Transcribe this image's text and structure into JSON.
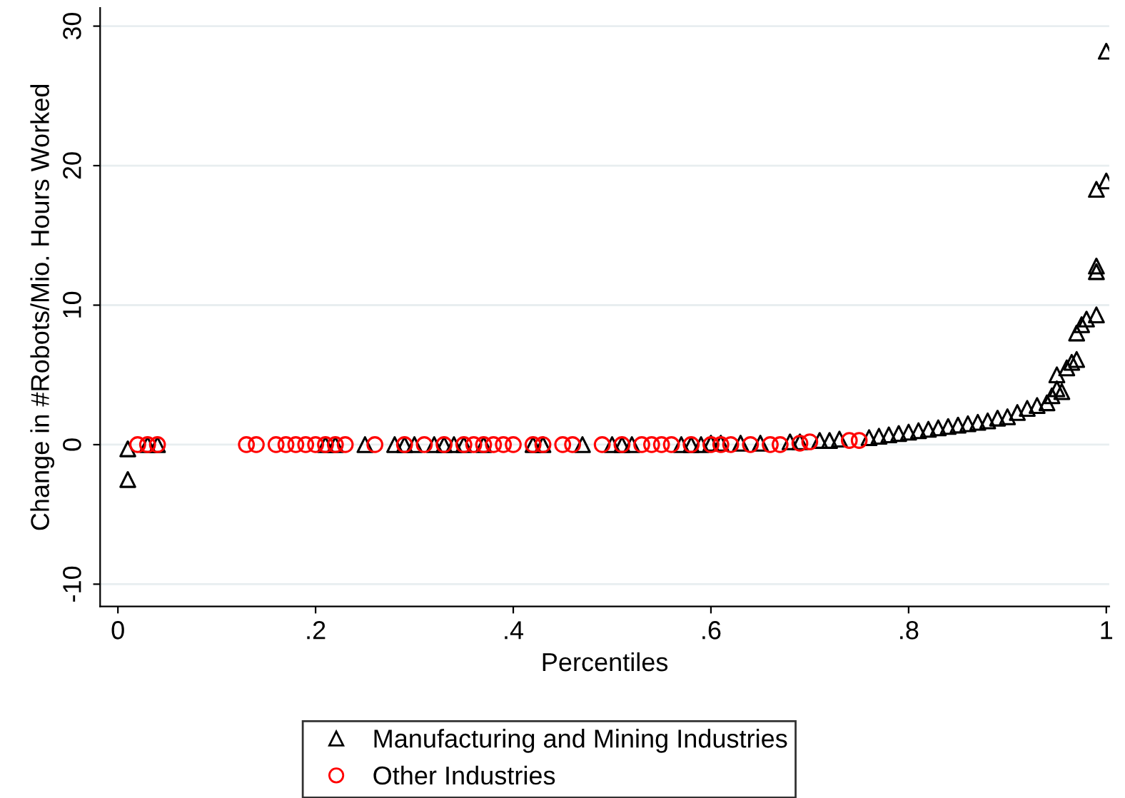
{
  "chart_data": {
    "type": "scatter",
    "xlabel": "Percentiles",
    "ylabel": "Change in #Robots/Mio. Hours Worked",
    "xlim": [
      -0.018,
      1.003
    ],
    "ylim": [
      -11.6,
      31.3
    ],
    "xticks": [
      {
        "value": 0,
        "label": "0"
      },
      {
        "value": 0.2,
        "label": ".2"
      },
      {
        "value": 0.4,
        "label": ".4"
      },
      {
        "value": 0.6,
        "label": ".6"
      },
      {
        "value": 0.8,
        "label": ".8"
      },
      {
        "value": 1,
        "label": "1"
      }
    ],
    "yticks": [
      -10,
      0,
      10,
      20,
      30
    ],
    "grid": "y",
    "legend": "bottom",
    "series": [
      {
        "name": "Manufacturing and Mining Industries",
        "color": "#000000",
        "marker": "triangle",
        "x": [
          0.01,
          0.01,
          0.03,
          0.04,
          0.21,
          0.22,
          0.25,
          0.28,
          0.29,
          0.3,
          0.32,
          0.33,
          0.34,
          0.35,
          0.37,
          0.42,
          0.43,
          0.47,
          0.5,
          0.51,
          0.52,
          0.57,
          0.58,
          0.59,
          0.6,
          0.61,
          0.63,
          0.65,
          0.68,
          0.69,
          0.71,
          0.72,
          0.73,
          0.76,
          0.77,
          0.78,
          0.79,
          0.8,
          0.81,
          0.82,
          0.83,
          0.84,
          0.85,
          0.86,
          0.87,
          0.88,
          0.89,
          0.9,
          0.91,
          0.92,
          0.93,
          0.94,
          0.945,
          0.95,
          0.95,
          0.955,
          0.96,
          0.965,
          0.97,
          0.97,
          0.975,
          0.98,
          0.99,
          0.99,
          0.99,
          0.99,
          1.0,
          1.0
        ],
        "values": [
          -0.3,
          -2.5,
          0,
          0,
          0,
          0,
          0,
          0,
          0,
          0,
          0,
          0,
          0,
          0,
          0,
          0,
          0,
          0,
          0,
          0,
          0,
          0,
          0,
          0,
          0.1,
          0.1,
          0.1,
          0.1,
          0.2,
          0.2,
          0.3,
          0.3,
          0.4,
          0.5,
          0.6,
          0.7,
          0.8,
          0.9,
          1.0,
          1.1,
          1.2,
          1.3,
          1.4,
          1.5,
          1.6,
          1.7,
          1.9,
          2.0,
          2.3,
          2.6,
          2.8,
          3.0,
          3.5,
          4.0,
          5.0,
          3.8,
          5.5,
          5.9,
          6.1,
          8.0,
          8.6,
          9.0,
          9.3,
          12.4,
          12.8,
          18.3,
          18.9,
          28.2
        ]
      },
      {
        "name": "Other Industries",
        "color": "#ff0000",
        "marker": "circle",
        "x": [
          0.02,
          0.03,
          0.04,
          0.13,
          0.14,
          0.16,
          0.17,
          0.18,
          0.19,
          0.2,
          0.21,
          0.22,
          0.23,
          0.26,
          0.29,
          0.31,
          0.33,
          0.35,
          0.36,
          0.37,
          0.38,
          0.39,
          0.4,
          0.42,
          0.43,
          0.45,
          0.46,
          0.49,
          0.51,
          0.53,
          0.54,
          0.55,
          0.56,
          0.58,
          0.6,
          0.61,
          0.62,
          0.64,
          0.66,
          0.67,
          0.69,
          0.7,
          0.74,
          0.75
        ],
        "values": [
          0,
          0,
          0,
          0,
          0,
          0,
          0,
          0,
          0,
          0,
          0,
          0,
          0,
          0,
          0,
          0,
          0,
          0,
          0,
          0,
          0,
          0,
          0,
          0,
          0,
          0,
          0,
          0,
          0,
          0,
          0,
          0,
          0,
          0,
          0,
          0,
          0,
          0,
          0,
          0,
          0.1,
          0.2,
          0.3,
          0.3
        ]
      }
    ]
  }
}
